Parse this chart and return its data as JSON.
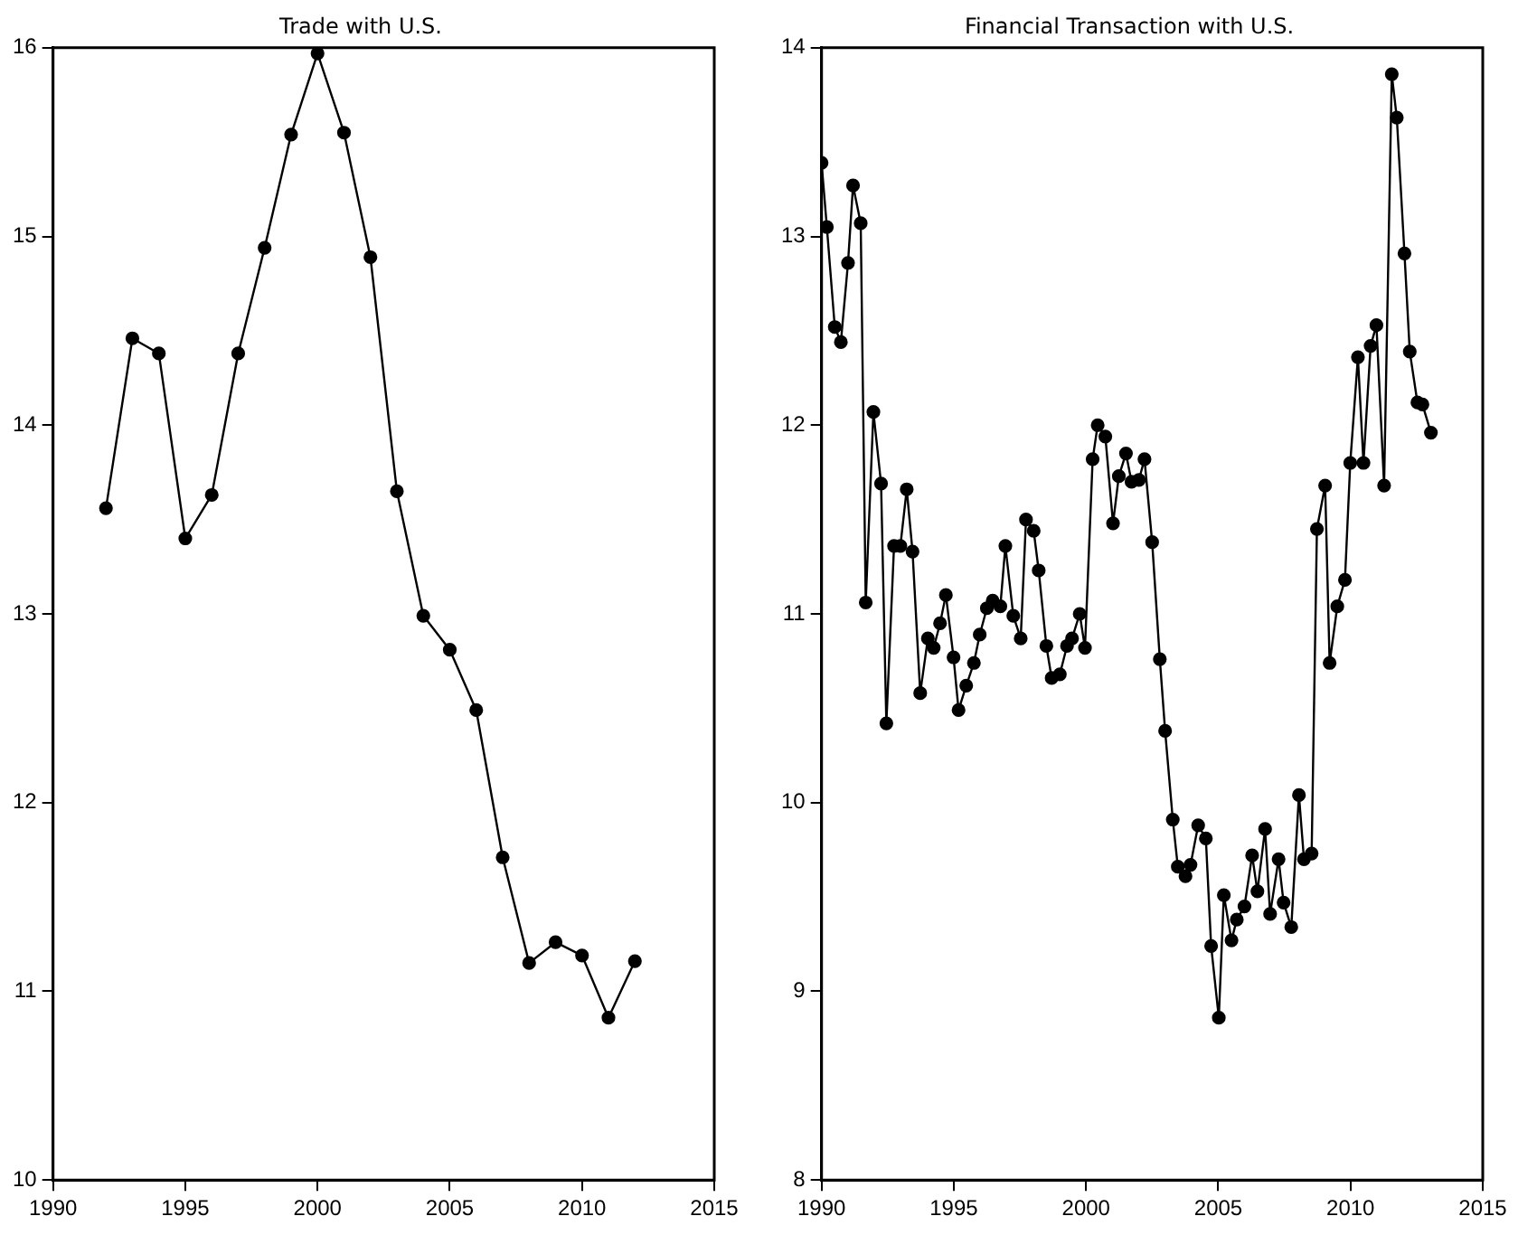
{
  "chart_data": [
    {
      "type": "line",
      "title": "Trade with U.S.",
      "marker": "circle",
      "grid": false,
      "legend": false,
      "xlim": [
        1990,
        2015
      ],
      "xticks": [
        1990,
        1995,
        2000,
        2005,
        2010,
        2015
      ],
      "ylim": [
        10,
        16
      ],
      "yticks": [
        10,
        11,
        12,
        13,
        14,
        15,
        16
      ],
      "series": [
        {
          "color": "#000000",
          "x": [
            1992,
            1993,
            1994,
            1995,
            1996,
            1997,
            1998,
            1999,
            2000,
            2001,
            2002,
            2003,
            2004,
            2005,
            2006,
            2007,
            2008,
            2009,
            2010,
            2011,
            2012
          ],
          "values": [
            13.56,
            14.46,
            14.38,
            13.4,
            13.63,
            14.38,
            14.94,
            15.54,
            15.97,
            15.55,
            14.89,
            13.65,
            12.99,
            12.81,
            12.49,
            11.71,
            11.15,
            11.26,
            11.19,
            10.86,
            11.16
          ]
        }
      ]
    },
    {
      "type": "line",
      "title": "Financial Transaction with U.S.",
      "marker": "circle",
      "grid": false,
      "legend": false,
      "xlim": [
        1990,
        2015
      ],
      "xticks": [
        1990,
        1995,
        2000,
        2005,
        2010,
        2015
      ],
      "ylim": [
        8,
        14
      ],
      "yticks": [
        8,
        9,
        10,
        11,
        12,
        13,
        14
      ],
      "series": [
        {
          "color": "#000000",
          "x": [
            1990.0,
            1990.2,
            1990.5,
            1990.73,
            1991.0,
            1991.19,
            1991.48,
            1991.67,
            1991.96,
            1992.25,
            1992.45,
            1992.74,
            1992.98,
            1993.22,
            1993.44,
            1993.73,
            1994.02,
            1994.24,
            1994.48,
            1994.7,
            1994.99,
            1995.18,
            1995.47,
            1995.76,
            1995.98,
            1996.25,
            1996.47,
            1996.76,
            1996.95,
            1997.25,
            1997.53,
            1997.73,
            1998.02,
            1998.21,
            1998.5,
            1998.7,
            1999.01,
            1999.28,
            1999.47,
            1999.76,
            1999.96,
            2000.25,
            2000.44,
            2000.73,
            2001.02,
            2001.24,
            2001.51,
            2001.72,
            2002.0,
            2002.21,
            2002.5,
            2002.79,
            2002.99,
            2003.28,
            2003.47,
            2003.76,
            2003.95,
            2004.24,
            2004.53,
            2004.73,
            2005.02,
            2005.21,
            2005.5,
            2005.7,
            2005.99,
            2006.28,
            2006.48,
            2006.77,
            2006.96,
            2007.28,
            2007.47,
            2007.76,
            2008.05,
            2008.24,
            2008.53,
            2008.73,
            2009.04,
            2009.21,
            2009.5,
            2009.79,
            2009.99,
            2010.28,
            2010.49,
            2010.76,
            2010.98,
            2011.27,
            2011.56,
            2011.75,
            2012.04,
            2012.24,
            2012.53,
            2012.72,
            2013.04
          ],
          "values": [
            13.39,
            13.05,
            12.52,
            12.44,
            12.86,
            13.27,
            13.07,
            11.06,
            12.07,
            11.69,
            10.42,
            11.36,
            11.36,
            11.66,
            11.33,
            10.58,
            10.87,
            10.82,
            10.95,
            11.1,
            10.77,
            10.49,
            10.62,
            10.74,
            10.89,
            11.03,
            11.07,
            11.04,
            11.36,
            10.99,
            10.87,
            11.5,
            11.44,
            11.23,
            10.83,
            10.66,
            10.68,
            10.83,
            10.87,
            11.0,
            10.82,
            11.82,
            12.0,
            11.94,
            11.48,
            11.73,
            11.85,
            11.7,
            11.71,
            11.82,
            11.38,
            10.76,
            10.38,
            9.91,
            9.66,
            9.61,
            9.67,
            9.88,
            9.81,
            9.24,
            8.86,
            9.51,
            9.27,
            9.38,
            9.45,
            9.72,
            9.53,
            9.86,
            9.41,
            9.7,
            9.47,
            9.34,
            10.04,
            9.7,
            9.73,
            11.45,
            11.68,
            10.74,
            11.04,
            11.18,
            11.8,
            12.36,
            11.8,
            12.42,
            12.53,
            11.68,
            13.86,
            13.63,
            12.91,
            12.39,
            12.12,
            12.11,
            11.96
          ]
        }
      ]
    }
  ]
}
